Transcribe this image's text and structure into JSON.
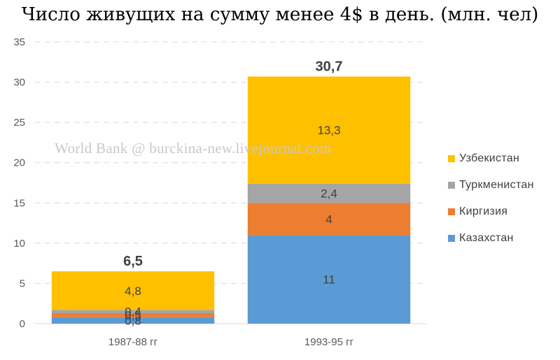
{
  "chart_data": {
    "type": "bar",
    "stacked": true,
    "title": "Число живущих на сумму менее 4$ в день. (млн. чел)",
    "watermark": "World Bank @ burckina-new.livejournal.com",
    "categories": [
      "1987-88 гг",
      "1993-95 гг"
    ],
    "series": [
      {
        "name": "Казахстан",
        "values": [
          0.8,
          11
        ],
        "labels": [
          "0,8",
          "11"
        ],
        "color": "#5b9bd5"
      },
      {
        "name": "Киргизия",
        "values": [
          0.5,
          4
        ],
        "labels": [
          "0,5",
          "4"
        ],
        "color": "#ed7d31"
      },
      {
        "name": "Туркменистан",
        "values": [
          0.4,
          2.4
        ],
        "labels": [
          "0,4",
          "2,4"
        ],
        "color": "#a5a5a5"
      },
      {
        "name": "Узбекистан",
        "values": [
          4.8,
          13.3
        ],
        "labels": [
          "4,8",
          "13,3"
        ],
        "color": "#ffc000"
      }
    ],
    "totals": [
      "6,5",
      "30,7"
    ],
    "ylim": [
      0,
      35
    ],
    "yticks": [
      "0",
      "5",
      "10",
      "15",
      "20",
      "25",
      "30",
      "35"
    ],
    "grid": true,
    "legend_position": "right",
    "legend_order": [
      "Узбекистан",
      "Туркменистан",
      "Киргизия",
      "Казахстан"
    ]
  }
}
